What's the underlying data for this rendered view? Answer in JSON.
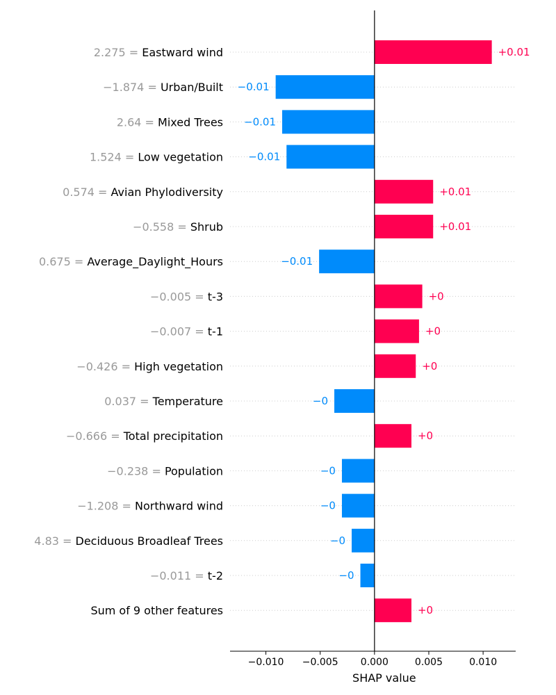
{
  "chart_data": {
    "type": "bar",
    "orientation": "horizontal",
    "xlabel": "SHAP value",
    "xlim": [
      -0.0133,
      0.013
    ],
    "x_ticks": [
      {
        "value": -0.01,
        "label": "−0.010"
      },
      {
        "value": -0.005,
        "label": "−0.005"
      },
      {
        "value": 0.0,
        "label": "0.000"
      },
      {
        "value": 0.005,
        "label": "0.005"
      },
      {
        "value": 0.01,
        "label": "0.010"
      }
    ],
    "colors": {
      "positive": "#ff0051",
      "negative": "#008bfb",
      "feature_value": "#999999"
    },
    "features": [
      {
        "value": "2.275",
        "name": "Eastward wind",
        "shap": 0.0108,
        "label": "+0.01"
      },
      {
        "value": "−1.874",
        "name": "Urban/Built",
        "shap": -0.0091,
        "label": "−0.01"
      },
      {
        "value": "2.64",
        "name": "Mixed Trees",
        "shap": -0.0085,
        "label": "−0.01"
      },
      {
        "value": "1.524",
        "name": "Low vegetation",
        "shap": -0.0081,
        "label": "−0.01"
      },
      {
        "value": "0.574",
        "name": "Avian Phylodiversity",
        "shap": 0.0054,
        "label": "+0.01"
      },
      {
        "value": "−0.558",
        "name": "Shrub",
        "shap": 0.0054,
        "label": "+0.01"
      },
      {
        "value": "0.675",
        "name": "Average_Daylight_Hours",
        "shap": -0.0051,
        "label": "−0.01"
      },
      {
        "value": "−0.005",
        "name": "t-3",
        "shap": 0.0044,
        "label": "+0"
      },
      {
        "value": "−0.007",
        "name": "t-1",
        "shap": 0.0041,
        "label": "+0"
      },
      {
        "value": "−0.426",
        "name": "High vegetation",
        "shap": 0.0038,
        "label": "+0"
      },
      {
        "value": "0.037",
        "name": "Temperature",
        "shap": -0.0037,
        "label": "−0"
      },
      {
        "value": "−0.666",
        "name": "Total precipitation",
        "shap": 0.0034,
        "label": "+0"
      },
      {
        "value": "−0.238",
        "name": "Population",
        "shap": -0.003,
        "label": "−0"
      },
      {
        "value": "−1.208",
        "name": "Northward wind",
        "shap": -0.003,
        "label": "−0"
      },
      {
        "value": "4.83",
        "name": "Deciduous Broadleaf Trees",
        "shap": -0.0021,
        "label": "−0"
      },
      {
        "value": "−0.011",
        "name": "t-2",
        "shap": -0.0013,
        "label": "−0"
      },
      {
        "value": "",
        "name": "Sum of 9 other features",
        "shap": 0.0034,
        "label": "+0"
      }
    ]
  }
}
